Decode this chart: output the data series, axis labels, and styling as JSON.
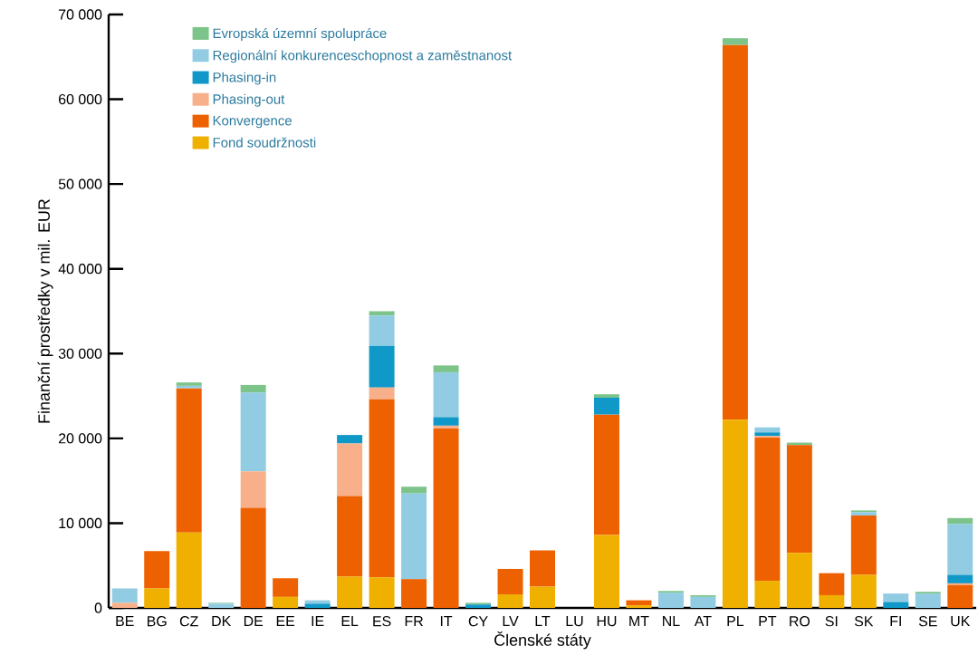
{
  "chart_data": {
    "type": "bar",
    "stacked": true,
    "xlabel": "Členské státy",
    "ylabel": "Finanční prostředky v mil. EUR",
    "categories": [
      "BE",
      "BG",
      "CZ",
      "DK",
      "DE",
      "EE",
      "IE",
      "EL",
      "ES",
      "FR",
      "IT",
      "CY",
      "LV",
      "LT",
      "LU",
      "HU",
      "MT",
      "NL",
      "AT",
      "PL",
      "PT",
      "RO",
      "SI",
      "SK",
      "FI",
      "SE",
      "UK"
    ],
    "ylim": [
      0,
      70000
    ],
    "yticks": [
      0,
      {
        "value": 10000,
        "label": "10 000"
      },
      {
        "value": 20000,
        "label": "20 000"
      },
      {
        "value": 30000,
        "label": "30 000"
      },
      {
        "value": 40000,
        "label": "40 000"
      },
      {
        "value": 50000,
        "label": "50 000"
      },
      {
        "value": 60000,
        "label": "60 000"
      },
      {
        "value": 70000,
        "label": "70 000"
      }
    ],
    "legend": "top left",
    "grid": false,
    "series": [
      {
        "name": "Fond soudržnosti",
        "color": "#f0b000",
        "values": [
          0,
          2300,
          8900,
          0,
          0,
          1300,
          0,
          3700,
          3600,
          0,
          0,
          0,
          1600,
          2500,
          0,
          8600,
          300,
          0,
          0,
          22200,
          3200,
          6500,
          1500,
          3900,
          0,
          0,
          0
        ]
      },
      {
        "name": "Konvergence",
        "color": "#ee6100",
        "values": [
          0,
          4400,
          17000,
          0,
          11800,
          2200,
          0,
          9500,
          21000,
          3400,
          21200,
          0,
          3000,
          4300,
          0,
          14200,
          600,
          0,
          0,
          44200,
          16900,
          12700,
          2600,
          7000,
          0,
          0,
          2700
        ]
      },
      {
        "name": "Phasing-out",
        "color": "#f7b08a",
        "values": [
          600,
          0,
          0,
          0,
          4300,
          0,
          0,
          6200,
          1400,
          0,
          300,
          0,
          0,
          0,
          0,
          0,
          0,
          0,
          0,
          0,
          200,
          0,
          0,
          0,
          0,
          0,
          200
        ]
      },
      {
        "name": "Phasing-in",
        "color": "#0f98c8",
        "values": [
          0,
          0,
          0,
          0,
          0,
          0,
          500,
          1000,
          4900,
          0,
          1000,
          400,
          0,
          0,
          0,
          2000,
          0,
          0,
          0,
          0,
          400,
          0,
          0,
          0,
          700,
          0,
          1000
        ]
      },
      {
        "name": "Regionální konkurenceschopnost a zaměstnanost",
        "color": "#92cce3",
        "values": [
          1700,
          0,
          300,
          500,
          9300,
          0,
          400,
          0,
          3600,
          10100,
          5300,
          0,
          0,
          0,
          0,
          0,
          0,
          1800,
          1300,
          0,
          600,
          0,
          0,
          400,
          1000,
          1700,
          6000
        ]
      },
      {
        "name": "Evropská územní spolupráce",
        "color": "#7dc48a",
        "values": [
          0,
          0,
          400,
          100,
          900,
          0,
          0,
          0,
          500,
          800,
          800,
          200,
          0,
          0,
          0,
          400,
          0,
          200,
          200,
          800,
          0,
          300,
          0,
          200,
          0,
          200,
          700
        ]
      }
    ]
  }
}
